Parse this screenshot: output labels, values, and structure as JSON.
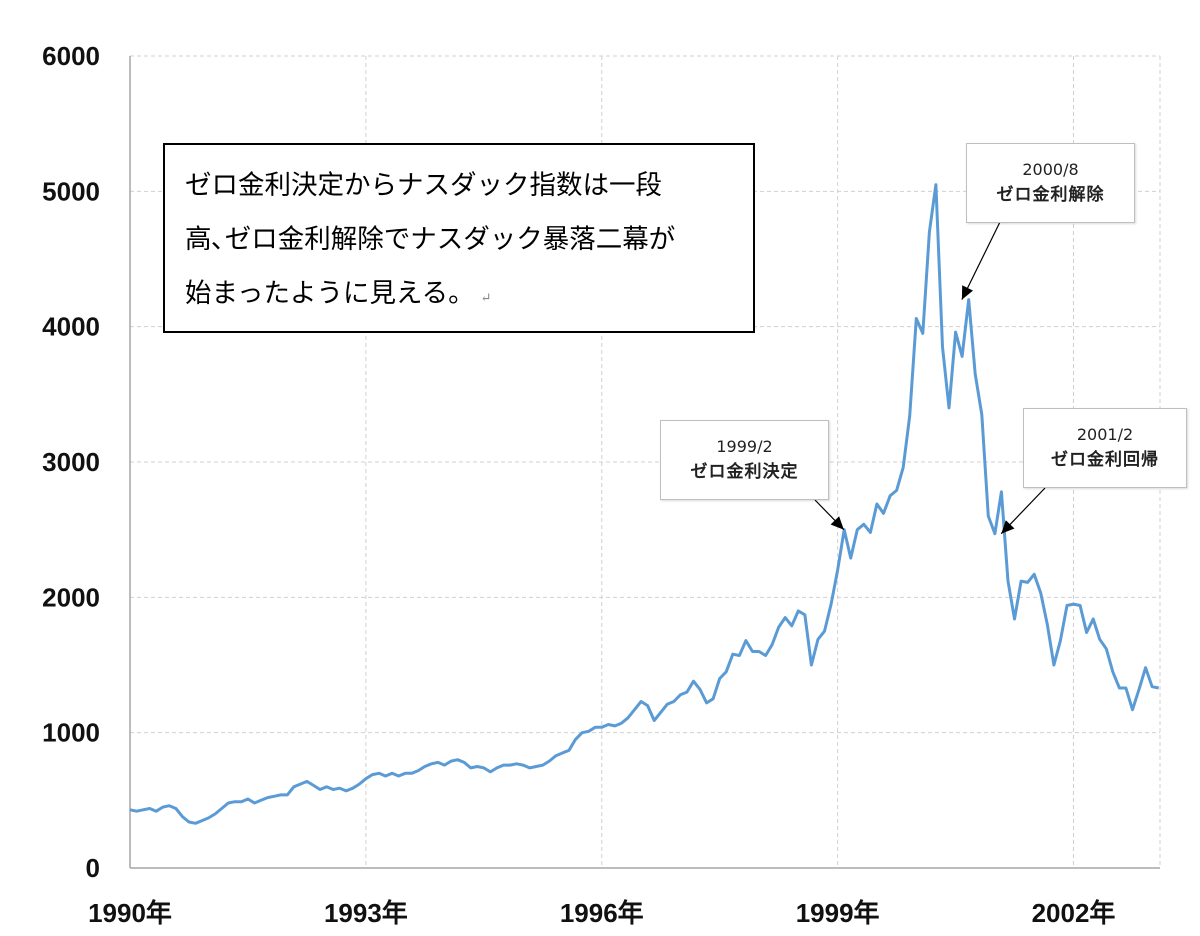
{
  "chart_data": {
    "type": "line",
    "title": "",
    "xlabel": "",
    "ylabel": "",
    "ylim": [
      0,
      6000
    ],
    "xlim": [
      1990.0,
      2003.1
    ],
    "y_ticks": [
      0,
      1000,
      2000,
      3000,
      4000,
      5000,
      6000
    ],
    "x_ticks": [
      {
        "value": 1990,
        "label": "1990年"
      },
      {
        "value": 1993,
        "label": "1993年"
      },
      {
        "value": 1996,
        "label": "1996年"
      },
      {
        "value": 1999,
        "label": "1999年"
      },
      {
        "value": 2002,
        "label": "2002年"
      }
    ],
    "grid": true,
    "line_color": "#5b9bd5",
    "series": [
      {
        "name": "",
        "start": "1990-01",
        "step": "month",
        "values": [
          430,
          420,
          430,
          440,
          420,
          450,
          460,
          440,
          380,
          340,
          330,
          350,
          370,
          400,
          440,
          480,
          490,
          490,
          510,
          480,
          500,
          520,
          530,
          540,
          540,
          600,
          620,
          640,
          610,
          580,
          600,
          580,
          590,
          570,
          590,
          620,
          660,
          690,
          700,
          680,
          700,
          680,
          700,
          700,
          720,
          750,
          770,
          780,
          760,
          790,
          800,
          780,
          740,
          750,
          740,
          710,
          740,
          760,
          760,
          770,
          760,
          740,
          750,
          760,
          790,
          830,
          850,
          870,
          950,
          1000,
          1010,
          1040,
          1040,
          1060,
          1050,
          1070,
          1110,
          1170,
          1230,
          1200,
          1090,
          1150,
          1210,
          1230,
          1280,
          1300,
          1380,
          1320,
          1220,
          1250,
          1400,
          1450,
          1580,
          1570,
          1680,
          1600,
          1600,
          1570,
          1650,
          1780,
          1850,
          1790,
          1900,
          1870,
          1500,
          1690,
          1750,
          1950,
          2200,
          2500,
          2290,
          2500,
          2540,
          2480,
          2690,
          2620,
          2750,
          2790,
          2960,
          3340,
          4060,
          3950,
          4700,
          5050,
          3850,
          3400,
          3960,
          3780,
          4200,
          3650,
          3350,
          2600,
          2470,
          2780,
          2120,
          1840,
          2120,
          2110,
          2170,
          2030,
          1800,
          1500,
          1680,
          1940,
          1950,
          1940,
          1740,
          1840,
          1690,
          1620,
          1450,
          1330,
          1330,
          1170,
          1320,
          1480,
          1340,
          1330
        ]
      }
    ],
    "annotations": [
      {
        "date_label": "1999/2",
        "text": "ゼロ金利決定",
        "x": 1999.08,
        "y": 2500
      },
      {
        "date_label": "2000/8",
        "text": "ゼロ金利解除",
        "x": 2000.58,
        "y": 4200
      },
      {
        "date_label": "2001/2",
        "text": "ゼロ金利回帰",
        "x": 2001.08,
        "y": 2470
      }
    ]
  },
  "note": {
    "lines": [
      "ゼロ金利決定からナスダック指数は一段",
      "高､ゼロ金利解除でナスダック暴落二幕が",
      "始まったように見える。"
    ],
    "mark": "↵"
  }
}
